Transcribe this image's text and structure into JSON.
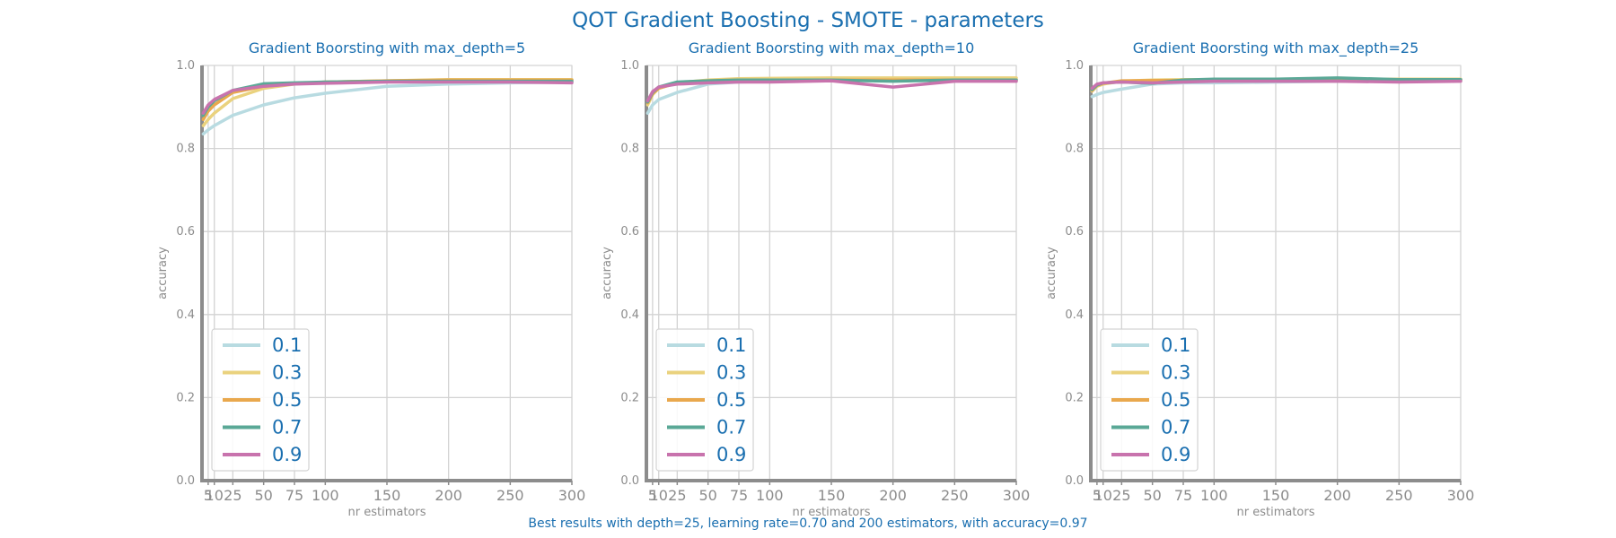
{
  "suptitle": "QOT Gradient Boosting - SMOTE - parameters",
  "footer": "Best results with depth=25, learning rate=0.70 and 200 estimators, with accuracy=0.97",
  "colors": {
    "title": "#1a6fb0",
    "axis": "#8c8c8c",
    "grid": "#d3d3d3",
    "series": [
      "#b8dbe1",
      "#ead27e",
      "#e9a84d",
      "#5aa896",
      "#c873ad"
    ]
  },
  "chart_data": [
    {
      "type": "line",
      "title": "Gradient Boorsting with max_depth=5",
      "xlabel": "nr estimators",
      "ylabel": "accuracy",
      "xlim": [
        0,
        300
      ],
      "ylim": [
        0,
        1.0
      ],
      "xticks": [
        5,
        10,
        25,
        50,
        75,
        100,
        150,
        200,
        250,
        300
      ],
      "xtick_labels": [
        "5",
        "10",
        "25",
        "50",
        "75",
        "100",
        "150",
        "200",
        "250",
        "300"
      ],
      "yticks": [
        0.0,
        0.2,
        0.4,
        0.6,
        0.8,
        1.0
      ],
      "ytick_labels": [
        "0.0",
        "0.2",
        "0.4",
        "0.6",
        "0.8",
        "1.0"
      ],
      "legend_position": "lower-left",
      "grid": true,
      "x": [
        1,
        5,
        10,
        25,
        50,
        75,
        100,
        150,
        200,
        250,
        300
      ],
      "series": [
        {
          "name": "0.1",
          "values": [
            0.835,
            0.845,
            0.855,
            0.88,
            0.905,
            0.922,
            0.933,
            0.95,
            0.955,
            0.958,
            0.96
          ]
        },
        {
          "name": "0.3",
          "values": [
            0.855,
            0.87,
            0.885,
            0.92,
            0.945,
            0.955,
            0.96,
            0.963,
            0.966,
            0.966,
            0.966
          ]
        },
        {
          "name": "0.5",
          "values": [
            0.87,
            0.89,
            0.905,
            0.935,
            0.95,
            0.956,
            0.96,
            0.963,
            0.965,
            0.965,
            0.965
          ]
        },
        {
          "name": "0.7",
          "values": [
            0.88,
            0.9,
            0.915,
            0.94,
            0.956,
            0.958,
            0.96,
            0.962,
            0.962,
            0.962,
            0.962
          ]
        },
        {
          "name": "0.9",
          "values": [
            0.885,
            0.905,
            0.918,
            0.94,
            0.95,
            0.955,
            0.957,
            0.96,
            0.96,
            0.96,
            0.958
          ]
        }
      ]
    },
    {
      "type": "line",
      "title": "Gradient Boorsting with max_depth=10",
      "xlabel": "nr estimators",
      "ylabel": "accuracy",
      "xlim": [
        0,
        300
      ],
      "ylim": [
        0,
        1.0
      ],
      "xticks": [
        5,
        10,
        25,
        50,
        75,
        100,
        150,
        200,
        250,
        300
      ],
      "xtick_labels": [
        "5",
        "10",
        "25",
        "50",
        "75",
        "100",
        "150",
        "200",
        "250",
        "300"
      ],
      "yticks": [
        0.0,
        0.2,
        0.4,
        0.6,
        0.8,
        1.0
      ],
      "ytick_labels": [
        "0.0",
        "0.2",
        "0.4",
        "0.6",
        "0.8",
        "1.0"
      ],
      "legend_position": "lower-left",
      "grid": true,
      "x": [
        1,
        5,
        10,
        25,
        50,
        75,
        100,
        150,
        200,
        250,
        300
      ],
      "series": [
        {
          "name": "0.1",
          "values": [
            0.885,
            0.905,
            0.918,
            0.935,
            0.955,
            0.96,
            0.962,
            0.965,
            0.966,
            0.967,
            0.967
          ]
        },
        {
          "name": "0.3",
          "values": [
            0.905,
            0.93,
            0.945,
            0.958,
            0.965,
            0.968,
            0.969,
            0.97,
            0.97,
            0.97,
            0.97
          ]
        },
        {
          "name": "0.5",
          "values": [
            0.91,
            0.932,
            0.945,
            0.958,
            0.963,
            0.965,
            0.965,
            0.965,
            0.965,
            0.965,
            0.965
          ]
        },
        {
          "name": "0.7",
          "values": [
            0.912,
            0.935,
            0.948,
            0.96,
            0.963,
            0.965,
            0.965,
            0.965,
            0.962,
            0.965,
            0.965
          ]
        },
        {
          "name": "0.9",
          "values": [
            0.915,
            0.937,
            0.948,
            0.955,
            0.958,
            0.96,
            0.96,
            0.963,
            0.948,
            0.962,
            0.962
          ]
        }
      ]
    },
    {
      "type": "line",
      "title": "Gradient Boorsting with max_depth=25",
      "xlabel": "nr estimators",
      "ylabel": "accuracy",
      "xlim": [
        0,
        300
      ],
      "ylim": [
        0,
        1.0
      ],
      "xticks": [
        5,
        10,
        25,
        50,
        75,
        100,
        150,
        200,
        250,
        300
      ],
      "xtick_labels": [
        "5",
        "10",
        "25",
        "50",
        "75",
        "100",
        "150",
        "200",
        "250",
        "300"
      ],
      "yticks": [
        0.0,
        0.2,
        0.4,
        0.6,
        0.8,
        1.0
      ],
      "ytick_labels": [
        "0.0",
        "0.2",
        "0.4",
        "0.6",
        "0.8",
        "1.0"
      ],
      "legend_position": "lower-left",
      "grid": true,
      "x": [
        1,
        5,
        10,
        25,
        50,
        75,
        100,
        150,
        200,
        250,
        300
      ],
      "series": [
        {
          "name": "0.1",
          "values": [
            0.925,
            0.93,
            0.935,
            0.943,
            0.955,
            0.958,
            0.958,
            0.96,
            0.962,
            0.963,
            0.963
          ]
        },
        {
          "name": "0.3",
          "values": [
            0.938,
            0.95,
            0.955,
            0.962,
            0.965,
            0.966,
            0.966,
            0.966,
            0.966,
            0.967,
            0.967
          ]
        },
        {
          "name": "0.5",
          "values": [
            0.94,
            0.952,
            0.957,
            0.963,
            0.964,
            0.964,
            0.964,
            0.965,
            0.965,
            0.965,
            0.965
          ]
        },
        {
          "name": "0.7",
          "values": [
            0.942,
            0.953,
            0.958,
            0.96,
            0.957,
            0.965,
            0.967,
            0.967,
            0.97,
            0.966,
            0.966
          ]
        },
        {
          "name": "0.9",
          "values": [
            0.945,
            0.955,
            0.958,
            0.96,
            0.958,
            0.96,
            0.962,
            0.962,
            0.962,
            0.96,
            0.962
          ]
        }
      ]
    }
  ]
}
